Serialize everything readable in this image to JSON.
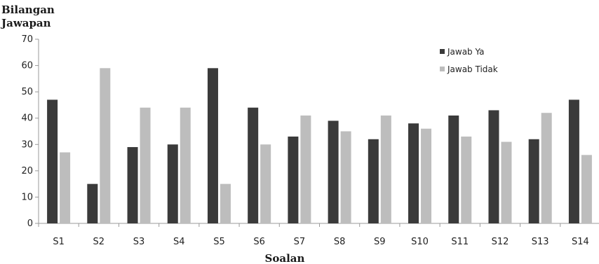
{
  "chart_data": {
    "type": "bar",
    "ylabel": [
      "Bilangan",
      "Jawapan"
    ],
    "xlabel": "Soalan",
    "categories": [
      "S1",
      "S2",
      "S3",
      "S4",
      "S5",
      "S6",
      "S7",
      "S8",
      "S9",
      "S10",
      "S11",
      "S12",
      "S13",
      "S14"
    ],
    "ylim": [
      0,
      70
    ],
    "yticks": [
      0,
      10,
      20,
      30,
      40,
      50,
      60,
      70
    ],
    "legend_position": "top-right",
    "grid": false,
    "series": [
      {
        "name": "Jawab Ya",
        "color": "#3a3a3a",
        "values": [
          47,
          15,
          29,
          30,
          59,
          44,
          33,
          39,
          32,
          38,
          41,
          43,
          32,
          47
        ]
      },
      {
        "name": "Jawab Tidak",
        "color": "#bdbdbd",
        "values": [
          27,
          59,
          44,
          44,
          15,
          30,
          41,
          35,
          41,
          36,
          33,
          31,
          42,
          26
        ]
      }
    ]
  }
}
